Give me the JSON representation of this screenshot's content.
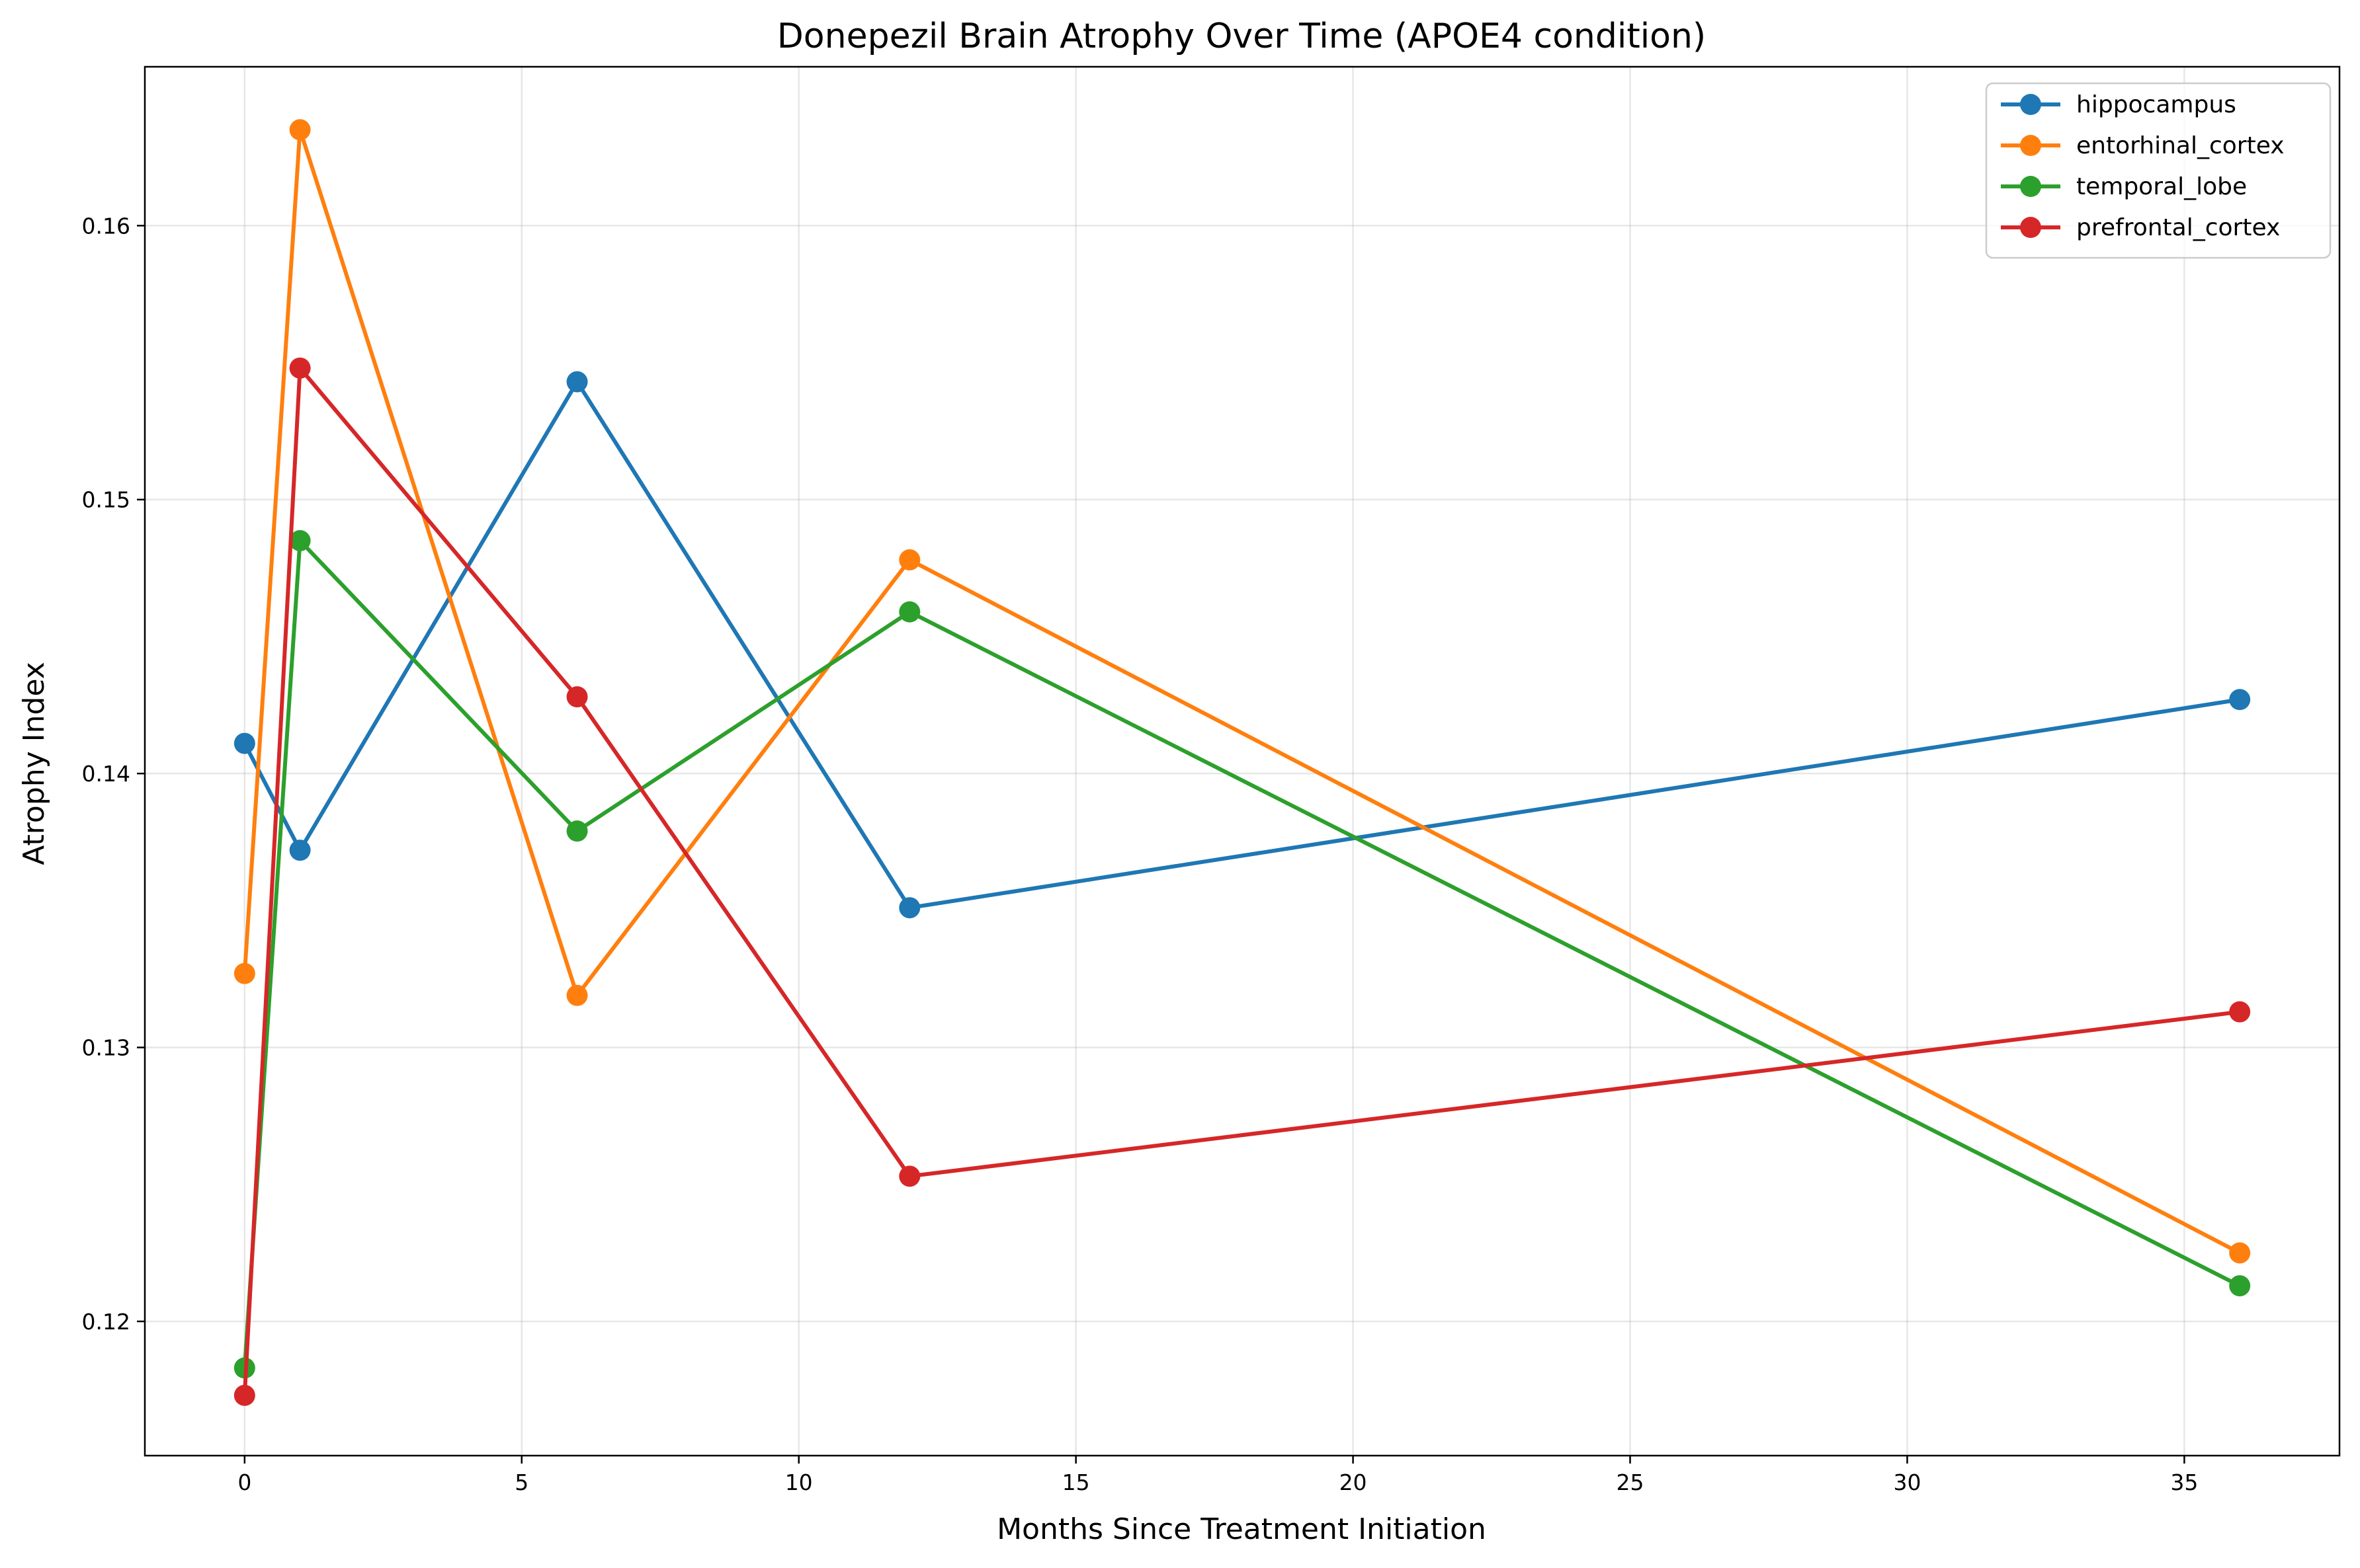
{
  "chart_data": {
    "type": "line",
    "title": "Donepezil Brain Atrophy Over Time (APOE4 condition)",
    "xlabel": "Months Since Treatment Initiation",
    "ylabel": "Atrophy Index",
    "xlim": [
      -1.8,
      37.8
    ],
    "ylim": [
      0.1151,
      0.1658
    ],
    "xticks": [
      0,
      5,
      10,
      15,
      20,
      25,
      30,
      35
    ],
    "xtick_labels": [
      "0",
      "5",
      "10",
      "15",
      "20",
      "25",
      "30",
      "35"
    ],
    "yticks": [
      0.12,
      0.13,
      0.14,
      0.15,
      0.16
    ],
    "ytick_labels": [
      "0.12",
      "0.13",
      "0.14",
      "0.15",
      "0.16"
    ],
    "grid": true,
    "legend_position": "top-right",
    "x": [
      0,
      1,
      6,
      12,
      36
    ],
    "series": [
      {
        "name": "hippocampus",
        "color": "#1f77b4",
        "values": [
          0.1411,
          0.1372,
          0.1543,
          0.1351,
          0.1427
        ]
      },
      {
        "name": "entorhinal_cortex",
        "color": "#ff7f0e",
        "values": [
          0.1327,
          0.1635,
          0.1319,
          0.1478,
          0.1225
        ]
      },
      {
        "name": "temporal_lobe",
        "color": "#2ca02c",
        "values": [
          0.1183,
          0.1485,
          0.1379,
          0.1459,
          0.1213
        ]
      },
      {
        "name": "prefrontal_cortex",
        "color": "#d62728",
        "values": [
          0.1173,
          0.1548,
          0.1428,
          0.1253,
          0.1313
        ]
      }
    ]
  }
}
